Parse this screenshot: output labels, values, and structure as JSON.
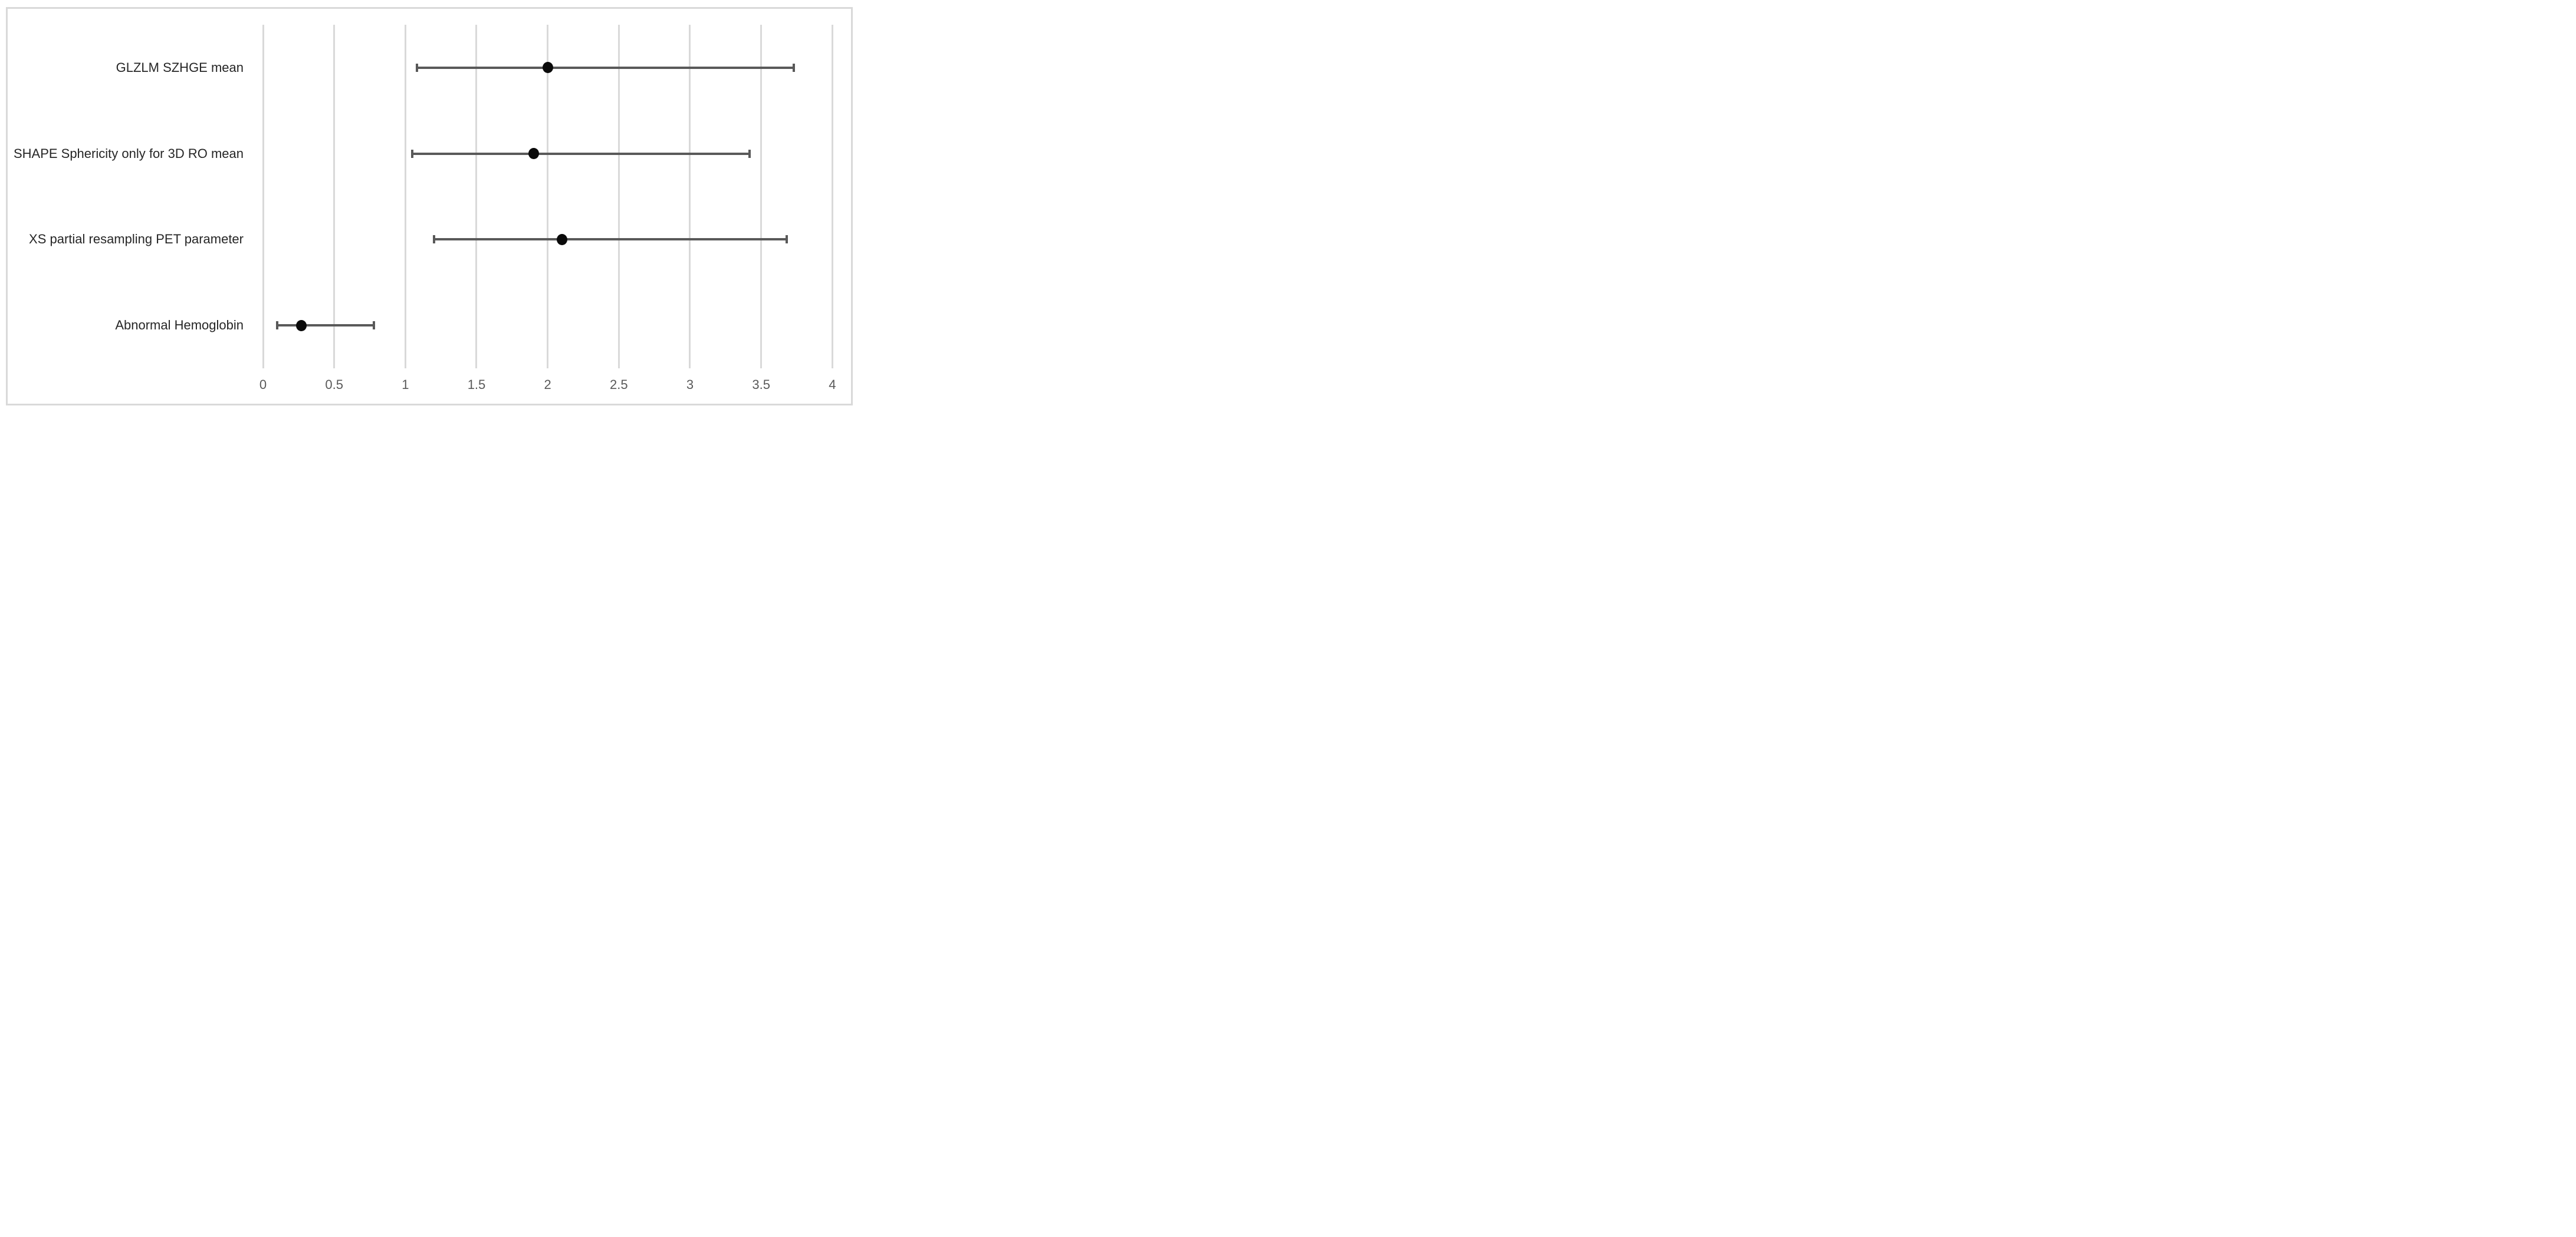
{
  "chart_data": {
    "type": "scatter",
    "subtype": "forest-plot-horizontal-error-bars",
    "title": "",
    "xlabel": "",
    "ylabel": "",
    "xlim": [
      0,
      4
    ],
    "x_ticks": [
      0,
      0.5,
      1,
      1.5,
      2,
      2.5,
      3,
      3.5,
      4
    ],
    "x_tick_labels": [
      "0",
      "0.5",
      "1",
      "1.5",
      "2",
      "2.5",
      "3",
      "3.5",
      "4"
    ],
    "grid": "vertical-only",
    "legend": "none",
    "marker_shape": "filled-circle",
    "rows": [
      {
        "label": "GLZLM SZHGE mean",
        "estimate": 2.0,
        "ci_lower": 1.08,
        "ci_upper": 3.73
      },
      {
        "label": "SHAPE Sphericity only for 3D RO mean",
        "estimate": 1.9,
        "ci_lower": 1.05,
        "ci_upper": 3.42
      },
      {
        "label": "XS partial resampling PET parameter",
        "estimate": 2.1,
        "ci_lower": 1.2,
        "ci_upper": 3.68
      },
      {
        "label": "Abnormal Hemoglobin",
        "estimate": 0.27,
        "ci_lower": 0.1,
        "ci_upper": 0.78
      }
    ],
    "colors": {
      "background": "#ffffff",
      "frame_border": "#d9d9d9",
      "gridline": "#d9d9d9",
      "error_bar": "#595959",
      "marker": "#0a0a0a",
      "category_label_text": "#262626",
      "tick_label_text": "#595959"
    }
  }
}
